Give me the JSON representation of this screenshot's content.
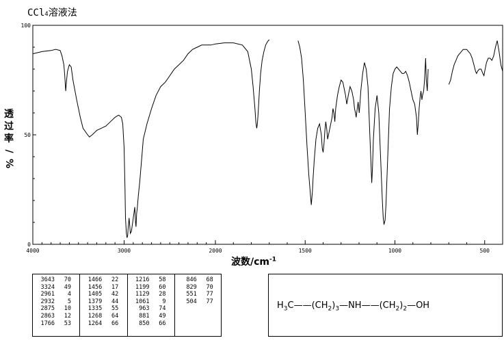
{
  "title": {
    "prefix": "CCl",
    "subscript": "4",
    "suffix": "溶液法"
  },
  "axes": {
    "ylabel_chars": [
      "透",
      "过",
      "率",
      "%"
    ],
    "ylabel_slash": "/",
    "xlabel_text": "波数/cm",
    "xlabel_sup": "-1"
  },
  "chart_data": {
    "type": "line",
    "title": "CCl4溶液法",
    "xlabel": "波数/cm-1",
    "ylabel": "透过率/%",
    "x_reversed": true,
    "xlim": [
      4000,
      400
    ],
    "ylim": [
      0,
      100
    ],
    "x_ticks": [
      4000,
      3000,
      2000,
      1500,
      1000,
      500
    ],
    "y_ticks": [
      0,
      50,
      100
    ],
    "segments": [
      {
        "x": [
          4000,
          3900,
          3800,
          3750,
          3700,
          3680,
          3660,
          3650,
          3643,
          3640,
          3630,
          3620,
          3600,
          3580,
          3560,
          3520,
          3480,
          3450,
          3400,
          3380,
          3350,
          3324,
          3300,
          3250,
          3200,
          3150,
          3100,
          3060,
          3030,
          3015,
          3000,
          2990,
          2985,
          2975,
          2968,
          2961,
          2955,
          2945,
          2932,
          2920,
          2900,
          2890,
          2883,
          2875,
          2870,
          2865,
          2863,
          2855,
          2845,
          2830,
          2810,
          2790,
          2750,
          2700,
          2650,
          2600,
          2550,
          2500,
          2450,
          2400,
          2350,
          2300,
          2250,
          2200,
          2150,
          2100,
          2050,
          2000,
          1950,
          1900,
          1850,
          1820,
          1800,
          1790,
          1780,
          1775,
          1770,
          1766,
          1762,
          1755,
          1748,
          1740,
          1730,
          1720,
          1710,
          1700
        ],
        "y": [
          87,
          88,
          88.5,
          89,
          88.5,
          86,
          82,
          77,
          72,
          70,
          75,
          79,
          82,
          81,
          75,
          66,
          58,
          53,
          50,
          49,
          50,
          51,
          52,
          53,
          54,
          56,
          58,
          59,
          58,
          55,
          44,
          25,
          12,
          5,
          3,
          4,
          8,
          12,
          5,
          6,
          12,
          15,
          17,
          10,
          8,
          12,
          14,
          17,
          22,
          28,
          38,
          48,
          55,
          62,
          68,
          72,
          74,
          77,
          80,
          82,
          84,
          87,
          89,
          90,
          91,
          91,
          91,
          91.5,
          92,
          92,
          91,
          88,
          80,
          72,
          62,
          56,
          53,
          55,
          60,
          70,
          78,
          84,
          88,
          91,
          92.5,
          93.5
        ]
      },
      {
        "x": [
          1540,
          1530,
          1520,
          1510,
          1500,
          1490,
          1480,
          1470,
          1466,
          1460,
          1456,
          1450,
          1440,
          1430,
          1420,
          1410,
          1405,
          1400,
          1395,
          1390,
          1385,
          1379,
          1375,
          1370,
          1360,
          1350,
          1345,
          1340,
          1335,
          1330,
          1320,
          1310,
          1300,
          1290,
          1280,
          1275,
          1268,
          1264,
          1260,
          1250,
          1240,
          1230,
          1225,
          1220,
          1216,
          1210,
          1205,
          1199,
          1195,
          1190,
          1180,
          1170,
          1160,
          1150,
          1140,
          1135,
          1129,
          1125,
          1120,
          1110,
          1100,
          1090,
          1080,
          1070,
          1065,
          1061,
          1055,
          1050,
          1040,
          1030,
          1020,
          1010,
          1000,
          990,
          980,
          970,
          960,
          950,
          940,
          930,
          920,
          910,
          900,
          890,
          880,
          875,
          870,
          865,
          860,
          855,
          850,
          846,
          840,
          835,
          829,
          825,
          820,
          815
        ],
        "y": [
          93,
          90,
          85,
          75,
          60,
          45,
          32,
          22,
          18,
          24,
          30,
          38,
          48,
          53,
          55,
          50,
          44,
          42,
          46,
          52,
          56,
          52,
          48,
          50,
          54,
          58,
          62,
          60,
          56,
          62,
          68,
          72,
          75,
          74,
          70,
          68,
          64,
          66,
          68,
          72,
          70,
          66,
          62,
          60,
          58,
          62,
          65,
          60,
          64,
          70,
          78,
          83,
          80,
          72,
          50,
          40,
          28,
          35,
          48,
          62,
          68,
          60,
          40,
          20,
          12,
          9,
          11,
          18,
          40,
          62,
          72,
          78,
          80,
          81,
          80,
          79,
          78,
          78,
          79,
          77,
          74,
          70,
          66,
          64,
          58,
          50,
          55,
          62,
          67,
          70,
          66,
          68,
          70,
          75,
          85,
          75,
          70,
          80
        ]
      },
      {
        "x": [
          700,
          690,
          680,
          670,
          660,
          650,
          640,
          630,
          620,
          610,
          600,
          590,
          580,
          570,
          560,
          551,
          545,
          540,
          530,
          520,
          515,
          510,
          504,
          500,
          495,
          490,
          480,
          470,
          460,
          450,
          440,
          430,
          420,
          410,
          400
        ],
        "y": [
          73,
          75,
          79,
          82,
          84,
          86,
          87,
          88,
          89,
          89,
          89,
          88,
          87,
          85,
          82,
          79,
          78,
          79,
          80,
          80,
          79,
          78,
          77,
          79,
          81,
          83,
          85,
          85,
          84,
          86,
          90,
          93,
          88,
          82,
          79
        ]
      }
    ],
    "peak_table": [
      [
        [
          3643,
          70
        ],
        [
          3324,
          49
        ],
        [
          2961,
          4
        ],
        [
          2932,
          5
        ],
        [
          2875,
          10
        ],
        [
          2863,
          12
        ],
        [
          1766,
          53
        ]
      ],
      [
        [
          1466,
          22
        ],
        [
          1456,
          17
        ],
        [
          1405,
          42
        ],
        [
          1379,
          44
        ],
        [
          1335,
          55
        ],
        [
          1268,
          64
        ],
        [
          1264,
          66
        ]
      ],
      [
        [
          1216,
          58
        ],
        [
          1199,
          60
        ],
        [
          1129,
          28
        ],
        [
          1061,
          9
        ],
        [
          963,
          74
        ],
        [
          881,
          49
        ],
        [
          850,
          66
        ]
      ],
      [
        [
          846,
          68
        ],
        [
          829,
          70
        ],
        [
          551,
          77
        ],
        [
          504,
          77
        ]
      ]
    ]
  },
  "structure": {
    "part1": "H",
    "sub1": "3",
    "part2": "C——(CH",
    "sub2": "2",
    "part3": ")",
    "sub3": "3",
    "part4": "—NH——(CH",
    "sub4": "2",
    "part5": ")",
    "sub5": "2",
    "part6": "—OH"
  },
  "colors": {
    "line": "#000000",
    "background": "#ffffff"
  }
}
